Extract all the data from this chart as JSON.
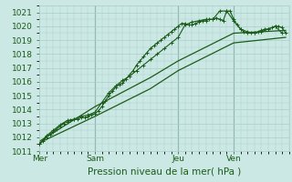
{
  "bg_color": "#cce8e4",
  "grid_color": "#aacfcb",
  "line_color": "#1a5c1a",
  "text_color": "#1a5c1a",
  "xlabel_text": "Pression niveau de la mer( hPa )",
  "ylim": [
    1011,
    1021.5
  ],
  "yticks": [
    1011,
    1012,
    1013,
    1014,
    1015,
    1016,
    1017,
    1018,
    1019,
    1020,
    1021
  ],
  "day_labels": [
    "Mer",
    "Sam",
    "Jeu",
    "Ven"
  ],
  "day_positions": [
    0,
    16,
    40,
    56
  ],
  "xlim": [
    0,
    72
  ],
  "line1_x": [
    0,
    1,
    2,
    3,
    4,
    5,
    6,
    7,
    8,
    9,
    10,
    11,
    12,
    13,
    14,
    15,
    16,
    17,
    18,
    19,
    20,
    21,
    22,
    23,
    24,
    25,
    26,
    27,
    28,
    29,
    30,
    31,
    32,
    33,
    34,
    35,
    36,
    37,
    38,
    39,
    40,
    41,
    42,
    43,
    44,
    45,
    46,
    47,
    48,
    49,
    50,
    51,
    52,
    53,
    54,
    55,
    56,
    57,
    58,
    59,
    60,
    61,
    62,
    63,
    64,
    65,
    66,
    67,
    68,
    69,
    70,
    71
  ],
  "line1_y": [
    1011.5,
    1011.7,
    1012.0,
    1012.2,
    1012.4,
    1012.6,
    1012.8,
    1013.0,
    1013.1,
    1013.2,
    1013.3,
    1013.3,
    1013.4,
    1013.4,
    1013.5,
    1013.6,
    1013.7,
    1013.9,
    1014.2,
    1014.6,
    1015.0,
    1015.3,
    1015.6,
    1015.8,
    1015.9,
    1016.2,
    1016.5,
    1016.8,
    1017.2,
    1017.5,
    1017.8,
    1018.1,
    1018.4,
    1018.6,
    1018.8,
    1019.0,
    1019.2,
    1019.4,
    1019.6,
    1019.8,
    1020.0,
    1020.2,
    1020.2,
    1020.1,
    1020.1,
    1020.2,
    1020.3,
    1020.4,
    1020.4,
    1020.5,
    1020.5,
    1020.6,
    1020.5,
    1020.4,
    1021.1,
    1021.1,
    1020.5,
    1020.1,
    1019.8,
    1019.6,
    1019.5,
    1019.5,
    1019.5,
    1019.6,
    1019.7,
    1019.8,
    1019.8,
    1019.9,
    1020.0,
    1020.0,
    1019.9,
    1019.5
  ],
  "line2_x": [
    0,
    2,
    4,
    6,
    8,
    10,
    12,
    14,
    16,
    18,
    20,
    22,
    24,
    26,
    28,
    30,
    32,
    34,
    36,
    38,
    40,
    42,
    44,
    46,
    48,
    50,
    52,
    54,
    56,
    58,
    60,
    62,
    64,
    66,
    68,
    70
  ],
  "line2_y": [
    1011.5,
    1012.1,
    1012.5,
    1012.9,
    1013.2,
    1013.3,
    1013.5,
    1013.6,
    1013.8,
    1014.5,
    1015.2,
    1015.7,
    1016.1,
    1016.4,
    1016.8,
    1017.2,
    1017.6,
    1018.0,
    1018.4,
    1018.8,
    1019.2,
    1020.1,
    1020.3,
    1020.4,
    1020.5,
    1020.5,
    1021.1,
    1021.1,
    1020.4,
    1019.8,
    1019.6,
    1019.5,
    1019.6,
    1019.8,
    1020.0,
    1019.5
  ],
  "line3_x": [
    0,
    16,
    32,
    40,
    56,
    71
  ],
  "line3_y": [
    1011.6,
    1013.5,
    1015.5,
    1016.8,
    1018.8,
    1019.2
  ],
  "line4_x": [
    0,
    16,
    32,
    40,
    56,
    71
  ],
  "line4_y": [
    1011.7,
    1014.2,
    1016.3,
    1017.5,
    1019.5,
    1019.7
  ]
}
